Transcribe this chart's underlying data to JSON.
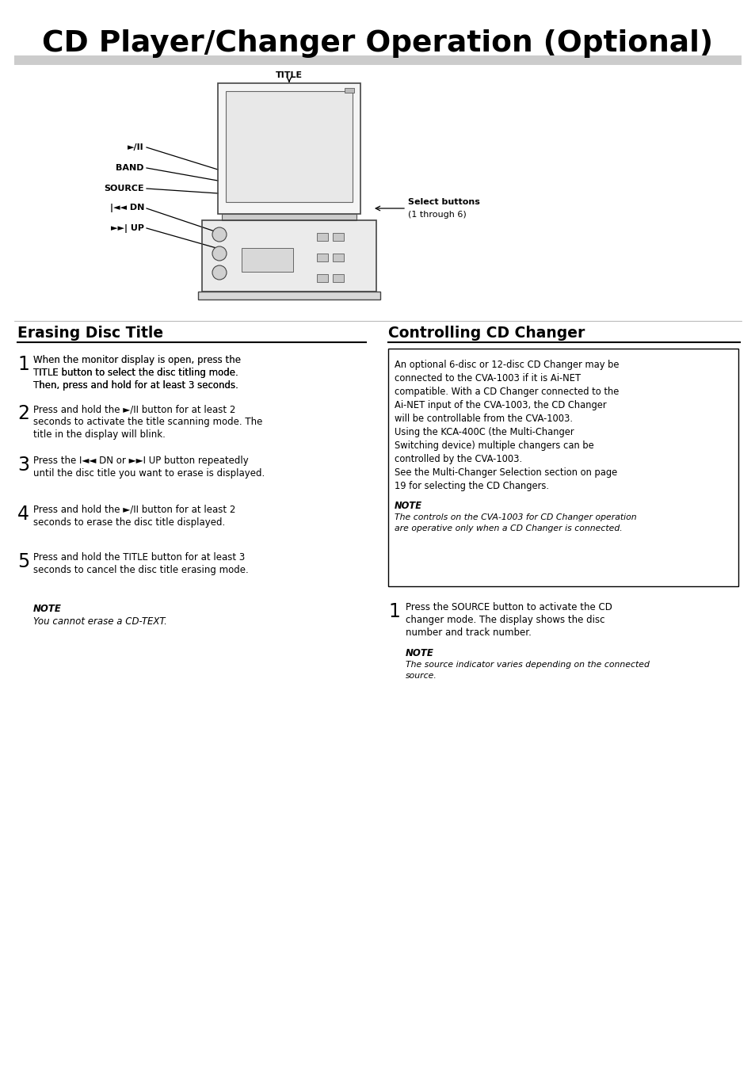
{
  "title": "CD Player/Changer Operation (Optional)",
  "bg_color": "#ffffff",
  "text_color": "#000000",
  "section1_title": "Erasing Disc Title",
  "section2_title": "Controlling CD Changer",
  "title_underline_color": "#bbbbbb",
  "section_line_color": "#000000",
  "box_text_lines": [
    "An optional 6-disc or 12-disc CD Changer may be",
    "connected to the CVA-1003 if it is Ai-NET",
    "compatible. With a CD Changer connected to the",
    "Ai-NET input of the CVA-1003, the CD Changer",
    "will be controllable from the CVA-1003.",
    "Using the KCA-400C (the Multi-Changer",
    "Switching device) multiple changers can be",
    "controlled by the CVA-1003.",
    "See the Multi-Changer Selection section on page",
    "19 for selecting the CD Changers."
  ],
  "box_note_line1": "The controls on the CVA-1003 for CD Changer operation",
  "box_note_line2": "are operative only when a CD Changer is connected.",
  "ctrl_step1_lines": [
    "Press the SOURCE button to activate the CD",
    "changer mode. The display shows the disc",
    "number and track number."
  ],
  "ctrl_step1_note1": "The source indicator varies depending on the connected",
  "ctrl_step1_note2": "source.",
  "erasing_note": "You cannot erase a CD-TEXT.",
  "step_texts": [
    [
      "When the monitor display is open, press the TITLE button to select the disc titling mode.",
      "Then, press and hold for at least 3 seconds."
    ],
    [
      "Press and hold the ►/II button for at least 2 seconds to activate the title scanning mode. The",
      "title in the display will blink."
    ],
    [
      "Press the I◄◄ DN or ►►I UP button repeatedly until the disc title you want to erase is displayed."
    ],
    [
      "Press and hold the ►/II button for at least 2 seconds to erase the disc title displayed."
    ],
    [
      "Press and hold the TITLE button for at least 3 seconds to cancel the disc title erasing mode."
    ]
  ],
  "step_bold_words": [
    [
      "TITLE"
    ],
    [
      "►/II"
    ],
    [
      "I◄◄ DN",
      "►►I UP"
    ],
    [
      "►/II"
    ],
    [
      "TITLE"
    ]
  ],
  "step_nums": [
    "1",
    "2",
    "3",
    "4",
    "5"
  ]
}
